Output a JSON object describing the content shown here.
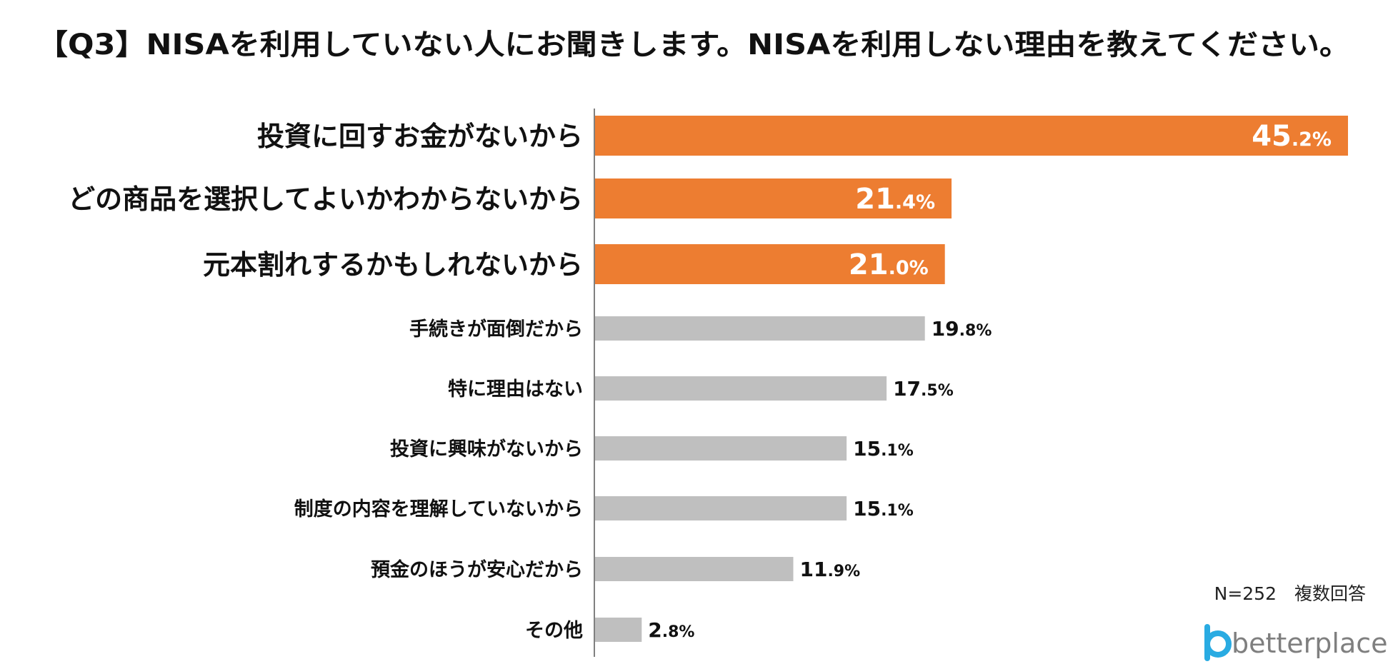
{
  "title": "【Q3】NISAを利用していない人にお聞きします。NISAを利用しない理由を教えてください。",
  "note": "N=252　複数回答",
  "logo": {
    "text": "betterplace",
    "icon": "b-logo-icon",
    "icon_color": "#29ABE2",
    "text_color": "#7F7F7F"
  },
  "colors": {
    "highlight": "#ED7D31",
    "normal": "#BFBFBF",
    "axis": "#808080"
  },
  "chart_data": {
    "type": "bar",
    "orientation": "horizontal",
    "title": "【Q3】NISAを利用していない人にお聞きします。NISAを利用しない理由を教えてください。",
    "xlabel": "",
    "ylabel": "",
    "xlim": [
      0,
      50
    ],
    "unit": "%",
    "grid": false,
    "categories": [
      "投資に回すお金がないから",
      "どの商品を選択してよいかわからないから",
      "元本割れするかもしれないから",
      "手続きが面倒だから",
      "特に理由はない",
      "投資に興味がないから",
      "制度の内容を理解していないから",
      "預金のほうが安心だから",
      "その他"
    ],
    "values": [
      45.2,
      21.4,
      21.0,
      19.8,
      17.5,
      15.1,
      15.1,
      11.9,
      2.8
    ],
    "labels": [
      "45.2%",
      "21.4%",
      "21.0%",
      "19.8%",
      "17.5%",
      "15.1%",
      "15.1%",
      "11.9%",
      "2.8%"
    ],
    "highlighted": [
      true,
      true,
      true,
      false,
      false,
      false,
      false,
      false,
      false
    ]
  }
}
